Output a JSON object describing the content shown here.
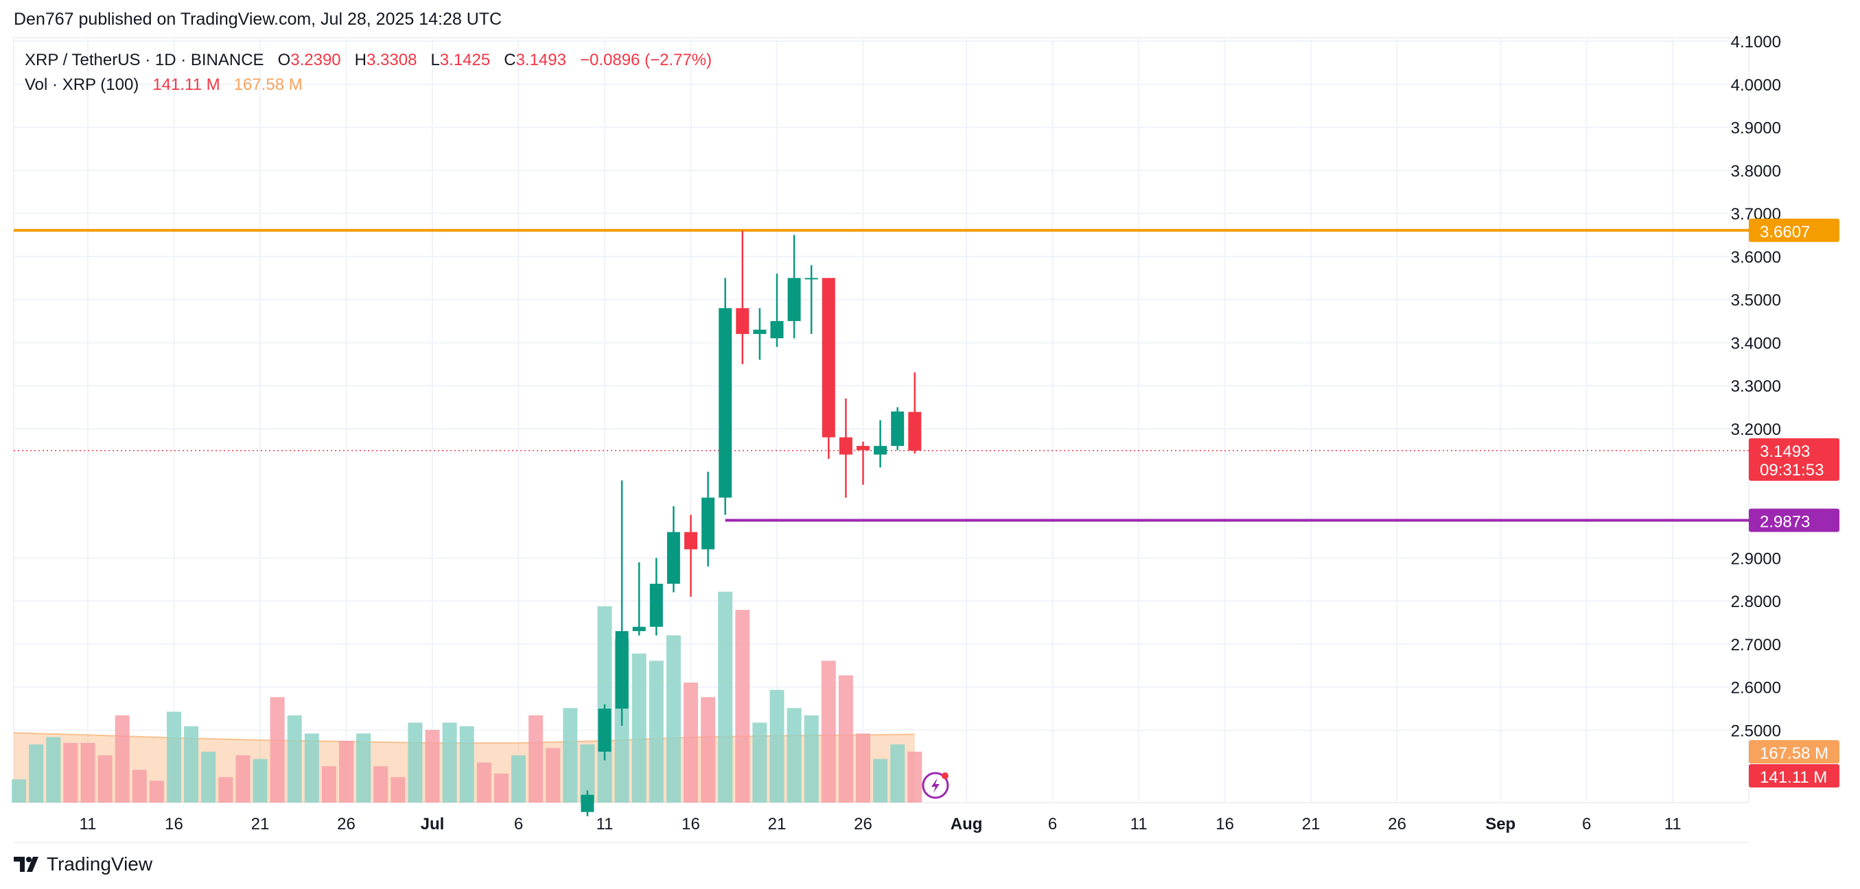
{
  "header": {
    "published": "Den767 published on TradingView.com, Jul 28, 2025 14:28 UTC"
  },
  "legend": {
    "symbol": "XRP / TetherUS · 1D · BINANCE",
    "o_label": "O",
    "o_value": "3.2390",
    "h_label": "H",
    "h_value": "3.3308",
    "l_label": "L",
    "l_value": "3.1425",
    "c_label": "C",
    "c_value": "3.1493",
    "change": "−0.0896 (−2.77%)",
    "vol_label": "Vol · XRP (100)",
    "vol_value": "141.11 M",
    "vol_ma_value": "167.58 M"
  },
  "brand": {
    "name": "TradingView"
  },
  "colors": {
    "up": "#089981",
    "down": "#f23645",
    "up_vol": "#8ed3c9",
    "down_vol": "#f7a0a7",
    "vol_ma": "#f7a35c",
    "resistance": "#f59c00",
    "support": "#9c27b0",
    "grid": "#f0f3fa"
  },
  "chart_data": {
    "type": "candlestick",
    "title": "XRP / TetherUS · 1D · BINANCE",
    "ylim": [
      2.38,
      4.1
    ],
    "y_ticks": [
      "4.1000",
      "4.0000",
      "3.9000",
      "3.8000",
      "3.7000",
      "3.6000",
      "3.5000",
      "3.4000",
      "3.3000",
      "3.2000",
      "2.9000",
      "2.8000",
      "2.7000",
      "2.6000",
      "2.5000"
    ],
    "x_ticks": [
      {
        "label": "11",
        "day": -20
      },
      {
        "label": "16",
        "day": -15
      },
      {
        "label": "21",
        "day": -10
      },
      {
        "label": "26",
        "day": -5
      },
      {
        "label": "Jul",
        "day": 0,
        "bold": true
      },
      {
        "label": "6",
        "day": 5
      },
      {
        "label": "11",
        "day": 10
      },
      {
        "label": "16",
        "day": 15
      },
      {
        "label": "21",
        "day": 20
      },
      {
        "label": "26",
        "day": 25
      },
      {
        "label": "Aug",
        "day": 31,
        "bold": true
      },
      {
        "label": "6",
        "day": 36
      },
      {
        "label": "11",
        "day": 41
      },
      {
        "label": "16",
        "day": 46
      },
      {
        "label": "21",
        "day": 51
      },
      {
        "label": "26",
        "day": 56
      },
      {
        "label": "Sep",
        "day": 62,
        "bold": true
      },
      {
        "label": "6",
        "day": 67
      },
      {
        "label": "11",
        "day": 72
      }
    ],
    "candles": [
      {
        "day": 9,
        "o": 2.31,
        "h": 2.36,
        "l": 2.3,
        "c": 2.35
      },
      {
        "day": 10,
        "o": 2.45,
        "h": 2.56,
        "l": 2.43,
        "c": 2.55
      },
      {
        "day": 11,
        "o": 2.55,
        "h": 3.08,
        "l": 2.51,
        "c": 2.73
      },
      {
        "day": 12,
        "o": 2.73,
        "h": 2.89,
        "l": 2.72,
        "c": 2.74
      },
      {
        "day": 13,
        "o": 2.74,
        "h": 2.9,
        "l": 2.72,
        "c": 2.84
      },
      {
        "day": 14,
        "o": 2.84,
        "h": 3.02,
        "l": 2.82,
        "c": 2.96
      },
      {
        "day": 15,
        "o": 2.96,
        "h": 3.0,
        "l": 2.81,
        "c": 2.92
      },
      {
        "day": 16,
        "o": 2.92,
        "h": 3.1,
        "l": 2.88,
        "c": 3.04
      },
      {
        "day": 17,
        "o": 3.04,
        "h": 3.55,
        "l": 3.0,
        "c": 3.48
      },
      {
        "day": 18,
        "o": 3.48,
        "h": 3.66,
        "l": 3.35,
        "c": 3.42
      },
      {
        "day": 19,
        "o": 3.42,
        "h": 3.48,
        "l": 3.36,
        "c": 3.43
      },
      {
        "day": 20,
        "o": 3.41,
        "h": 3.56,
        "l": 3.39,
        "c": 3.45
      },
      {
        "day": 21,
        "o": 3.45,
        "h": 3.65,
        "l": 3.41,
        "c": 3.55
      },
      {
        "day": 22,
        "o": 3.55,
        "h": 3.58,
        "l": 3.42,
        "c": 3.55
      },
      {
        "day": 23,
        "o": 3.55,
        "h": 3.55,
        "l": 3.13,
        "c": 3.18
      },
      {
        "day": 24,
        "o": 3.18,
        "h": 3.27,
        "l": 3.04,
        "c": 3.14
      },
      {
        "day": 25,
        "o": 3.16,
        "h": 3.17,
        "l": 3.07,
        "c": 3.15
      },
      {
        "day": 26,
        "o": 3.14,
        "h": 3.22,
        "l": 3.11,
        "c": 3.16
      },
      {
        "day": 27,
        "o": 3.16,
        "h": 3.25,
        "l": 3.15,
        "c": 3.24
      },
      {
        "day": 28,
        "o": 3.239,
        "h": 3.3308,
        "l": 3.1425,
        "c": 3.1493
      }
    ],
    "volume": {
      "max": 350,
      "bars": [
        {
          "day": -24,
          "v": 32,
          "up": true
        },
        {
          "day": -23,
          "v": 80,
          "up": true
        },
        {
          "day": -22,
          "v": 90,
          "up": true
        },
        {
          "day": -21,
          "v": 82,
          "up": false
        },
        {
          "day": -20,
          "v": 82,
          "up": false
        },
        {
          "day": -19,
          "v": 65,
          "up": false
        },
        {
          "day": -18,
          "v": 120,
          "up": false
        },
        {
          "day": -17,
          "v": 45,
          "up": false
        },
        {
          "day": -16,
          "v": 30,
          "up": false
        },
        {
          "day": -15,
          "v": 125,
          "up": true
        },
        {
          "day": -14,
          "v": 105,
          "up": true
        },
        {
          "day": -13,
          "v": 70,
          "up": true
        },
        {
          "day": -12,
          "v": 35,
          "up": false
        },
        {
          "day": -11,
          "v": 65,
          "up": false
        },
        {
          "day": -10,
          "v": 60,
          "up": true
        },
        {
          "day": -9,
          "v": 145,
          "up": false
        },
        {
          "day": -8,
          "v": 120,
          "up": true
        },
        {
          "day": -7,
          "v": 95,
          "up": true
        },
        {
          "day": -6,
          "v": 50,
          "up": false
        },
        {
          "day": -5,
          "v": 85,
          "up": false
        },
        {
          "day": -4,
          "v": 95,
          "up": true
        },
        {
          "day": -3,
          "v": 50,
          "up": false
        },
        {
          "day": -2,
          "v": 35,
          "up": false
        },
        {
          "day": -1,
          "v": 110,
          "up": true
        },
        {
          "day": 0,
          "v": 100,
          "up": false
        },
        {
          "day": 1,
          "v": 110,
          "up": true
        },
        {
          "day": 2,
          "v": 105,
          "up": true
        },
        {
          "day": 3,
          "v": 55,
          "up": false
        },
        {
          "day": 4,
          "v": 40,
          "up": false
        },
        {
          "day": 5,
          "v": 65,
          "up": true
        },
        {
          "day": 6,
          "v": 120,
          "up": false
        },
        {
          "day": 7,
          "v": 75,
          "up": false
        },
        {
          "day": 8,
          "v": 130,
          "up": true
        },
        {
          "day": 9,
          "v": 80,
          "up": true
        },
        {
          "day": 10,
          "v": 270,
          "up": true
        },
        {
          "day": 11,
          "v": 225,
          "up": true
        },
        {
          "day": 12,
          "v": 205,
          "up": true
        },
        {
          "day": 13,
          "v": 195,
          "up": true
        },
        {
          "day": 14,
          "v": 230,
          "up": true
        },
        {
          "day": 15,
          "v": 165,
          "up": false
        },
        {
          "day": 16,
          "v": 145,
          "up": false
        },
        {
          "day": 17,
          "v": 290,
          "up": true
        },
        {
          "day": 18,
          "v": 265,
          "up": false
        },
        {
          "day": 19,
          "v": 110,
          "up": true
        },
        {
          "day": 20,
          "v": 155,
          "up": true
        },
        {
          "day": 21,
          "v": 130,
          "up": true
        },
        {
          "day": 22,
          "v": 120,
          "up": true
        },
        {
          "day": 23,
          "v": 195,
          "up": false
        },
        {
          "day": 24,
          "v": 175,
          "up": false
        },
        {
          "day": 25,
          "v": 95,
          "up": false
        },
        {
          "day": 26,
          "v": 60,
          "up": true
        },
        {
          "day": 27,
          "v": 80,
          "up": true
        },
        {
          "day": 28,
          "v": 70,
          "up": false
        }
      ],
      "ma": [
        {
          "day": -25,
          "v": 96
        },
        {
          "day": -20,
          "v": 93
        },
        {
          "day": -15,
          "v": 89
        },
        {
          "day": -10,
          "v": 86
        },
        {
          "day": -5,
          "v": 84
        },
        {
          "day": 0,
          "v": 82
        },
        {
          "day": 5,
          "v": 82
        },
        {
          "day": 10,
          "v": 85
        },
        {
          "day": 15,
          "v": 90
        },
        {
          "day": 20,
          "v": 92
        },
        {
          "day": 25,
          "v": 93
        },
        {
          "day": 28,
          "v": 94
        }
      ]
    },
    "lines": [
      {
        "name": "resistance",
        "price": 3.6607,
        "label": "3.6607",
        "color": "#f59c00",
        "from_day": -25
      },
      {
        "name": "support",
        "price": 2.9873,
        "label": "2.9873",
        "color": "#9c27b0",
        "from_day": 17
      }
    ],
    "current_price": {
      "label": "3.1493",
      "countdown": "09:31:53",
      "price": 3.1493
    },
    "volume_labels": {
      "ma": "167.58 M",
      "vol": "141.11 M"
    }
  }
}
